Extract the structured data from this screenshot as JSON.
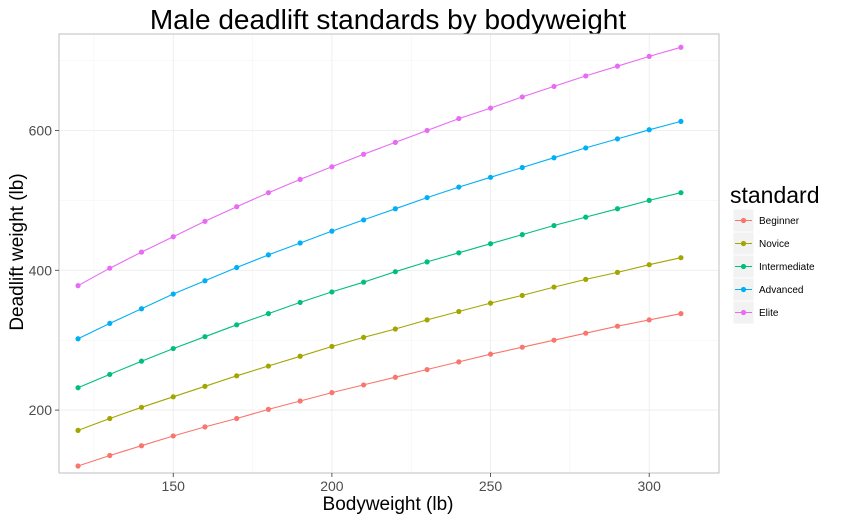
{
  "chart_data": {
    "type": "line",
    "title": "Male deadlift standards by bodyweight",
    "xlabel": "Bodyweight (lb)",
    "ylabel": "Deadlift weight (lb)",
    "x": [
      120,
      130,
      140,
      150,
      160,
      170,
      180,
      190,
      200,
      210,
      220,
      230,
      240,
      250,
      260,
      270,
      280,
      290,
      300,
      310
    ],
    "xlim": [
      114,
      322
    ],
    "ylim": [
      110,
      738
    ],
    "xticks": [
      150,
      200,
      250,
      300
    ],
    "yticks": [
      200,
      400,
      600
    ],
    "grid": true,
    "legend_title": "standard",
    "legend_position": "right",
    "series": [
      {
        "name": "Beginner",
        "color": "#F8766D",
        "values": [
          120,
          135,
          149,
          163,
          176,
          188,
          201,
          213,
          225,
          236,
          247,
          258,
          269,
          280,
          290,
          300,
          310,
          320,
          329,
          338
        ]
      },
      {
        "name": "Novice",
        "color": "#A3A500",
        "values": [
          171,
          188,
          204,
          219,
          234,
          249,
          263,
          277,
          291,
          304,
          316,
          329,
          341,
          353,
          364,
          376,
          387,
          397,
          408,
          418
        ]
      },
      {
        "name": "Intermediate",
        "color": "#00BF7D",
        "values": [
          232,
          251,
          270,
          288,
          305,
          322,
          338,
          354,
          369,
          383,
          398,
          412,
          425,
          438,
          451,
          464,
          476,
          488,
          500,
          511
        ]
      },
      {
        "name": "Advanced",
        "color": "#00B0F6",
        "values": [
          302,
          324,
          345,
          366,
          385,
          404,
          422,
          439,
          456,
          472,
          488,
          504,
          519,
          533,
          547,
          561,
          575,
          588,
          601,
          613
        ]
      },
      {
        "name": "Elite",
        "color": "#E76BF3",
        "values": [
          378,
          403,
          426,
          448,
          470,
          491,
          511,
          530,
          548,
          566,
          583,
          600,
          617,
          632,
          648,
          663,
          678,
          692,
          706,
          719
        ]
      }
    ]
  }
}
